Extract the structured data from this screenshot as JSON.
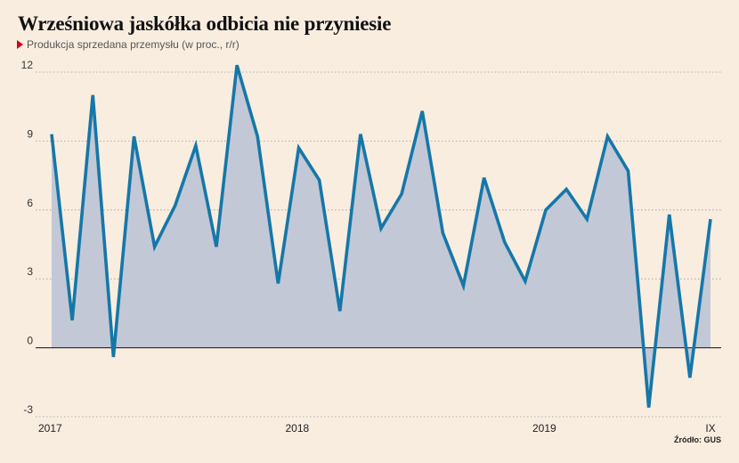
{
  "title": "Wrześniowa jaskółka odbicia nie przyniesie",
  "subtitle": "Produkcja sprzedana przemysłu (w proc., r/r)",
  "source": "Źródło: GUS",
  "colors": {
    "background": "#f9ede0",
    "line": "#1577a8",
    "area": "#c2c8d6",
    "marker": "#d0021b"
  },
  "chart_data": {
    "type": "area",
    "title": "Wrześniowa jaskółka odbicia nie przyniesie",
    "ylabel": "Produkcja sprzedana przemysłu (w proc., r/r)",
    "ylim": [
      -3,
      12
    ],
    "yticks": [
      12,
      9,
      6,
      3,
      0,
      -3
    ],
    "ytick_labels": [
      "12",
      "9",
      "6",
      "3",
      "0",
      "-3"
    ],
    "grid": true,
    "x": [
      "2017-01",
      "2017-02",
      "2017-03",
      "2017-04",
      "2017-05",
      "2017-06",
      "2017-07",
      "2017-08",
      "2017-09",
      "2017-10",
      "2017-11",
      "2017-12",
      "2018-01",
      "2018-02",
      "2018-03",
      "2018-04",
      "2018-05",
      "2018-06",
      "2018-07",
      "2018-08",
      "2018-09",
      "2018-10",
      "2018-11",
      "2018-12",
      "2019-01",
      "2019-02",
      "2019-03",
      "2019-04",
      "2019-05",
      "2019-06",
      "2019-07",
      "2019-08",
      "2019-09"
    ],
    "xtick_labels": [
      {
        "label": "2017",
        "x": "2017-01"
      },
      {
        "label": "2018",
        "x": "2018-01"
      },
      {
        "label": "2019",
        "x": "2019-01"
      },
      {
        "label": "IX",
        "x": "2019-09"
      }
    ],
    "series": [
      {
        "values": [
          9.3,
          1.2,
          11.0,
          -0.4,
          9.2,
          4.4,
          6.2,
          8.8,
          4.4,
          12.3,
          9.2,
          2.8,
          8.7,
          7.3,
          1.6,
          9.3,
          5.2,
          6.7,
          10.3,
          5.0,
          2.7,
          7.4,
          4.6,
          2.9,
          6.0,
          6.9,
          5.6,
          9.2,
          7.7,
          -2.6,
          5.8,
          -1.3,
          5.6
        ]
      }
    ]
  }
}
